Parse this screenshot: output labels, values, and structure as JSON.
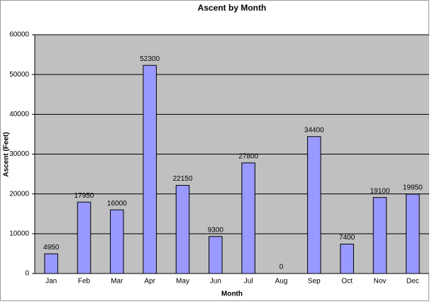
{
  "chart_data": {
    "type": "bar",
    "title": "Ascent  by Month",
    "x_label": "Month",
    "y_label": "Ascent (Feet)",
    "categories": [
      "Jan",
      "Feb",
      "Mar",
      "Apr",
      "May",
      "Jun",
      "Jul",
      "Aug",
      "Sep",
      "Oct",
      "Nov",
      "Dec"
    ],
    "values": [
      4950,
      17950,
      16000,
      52300,
      22150,
      9300,
      27800,
      0,
      34400,
      7400,
      19100,
      19950
    ],
    "color": "#9999ff",
    "ylim": [
      0,
      60000
    ],
    "yticks": [
      0,
      10000,
      20000,
      30000,
      40000,
      50000,
      60000
    ],
    "grid": true
  }
}
